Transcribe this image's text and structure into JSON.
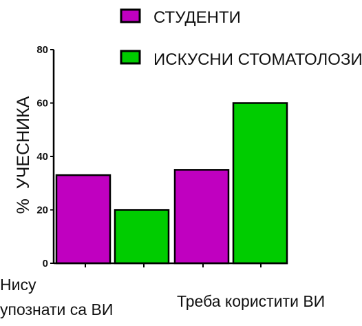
{
  "chart_data": {
    "type": "bar",
    "categories": [
      "Нису упознати са ВИ",
      "Треба користити ВИ"
    ],
    "category_lines": [
      [
        "Нису",
        "упознати са ВИ"
      ],
      [
        "Треба користити ВИ"
      ]
    ],
    "series": [
      {
        "name": "СТУДЕНТИ",
        "color": "#c000c0",
        "values": [
          33,
          35
        ]
      },
      {
        "name": "ИСКУСНИ СТОМАТОЛОЗИ",
        "color": "#00cc00",
        "values": [
          20,
          60
        ]
      }
    ],
    "ylabel_percent": "%",
    "ylabel": "УЧЕСНИКА",
    "ylim": [
      0,
      80
    ],
    "yticks": [
      0,
      20,
      40,
      60,
      80
    ],
    "grid": false,
    "legend_position": "top"
  }
}
